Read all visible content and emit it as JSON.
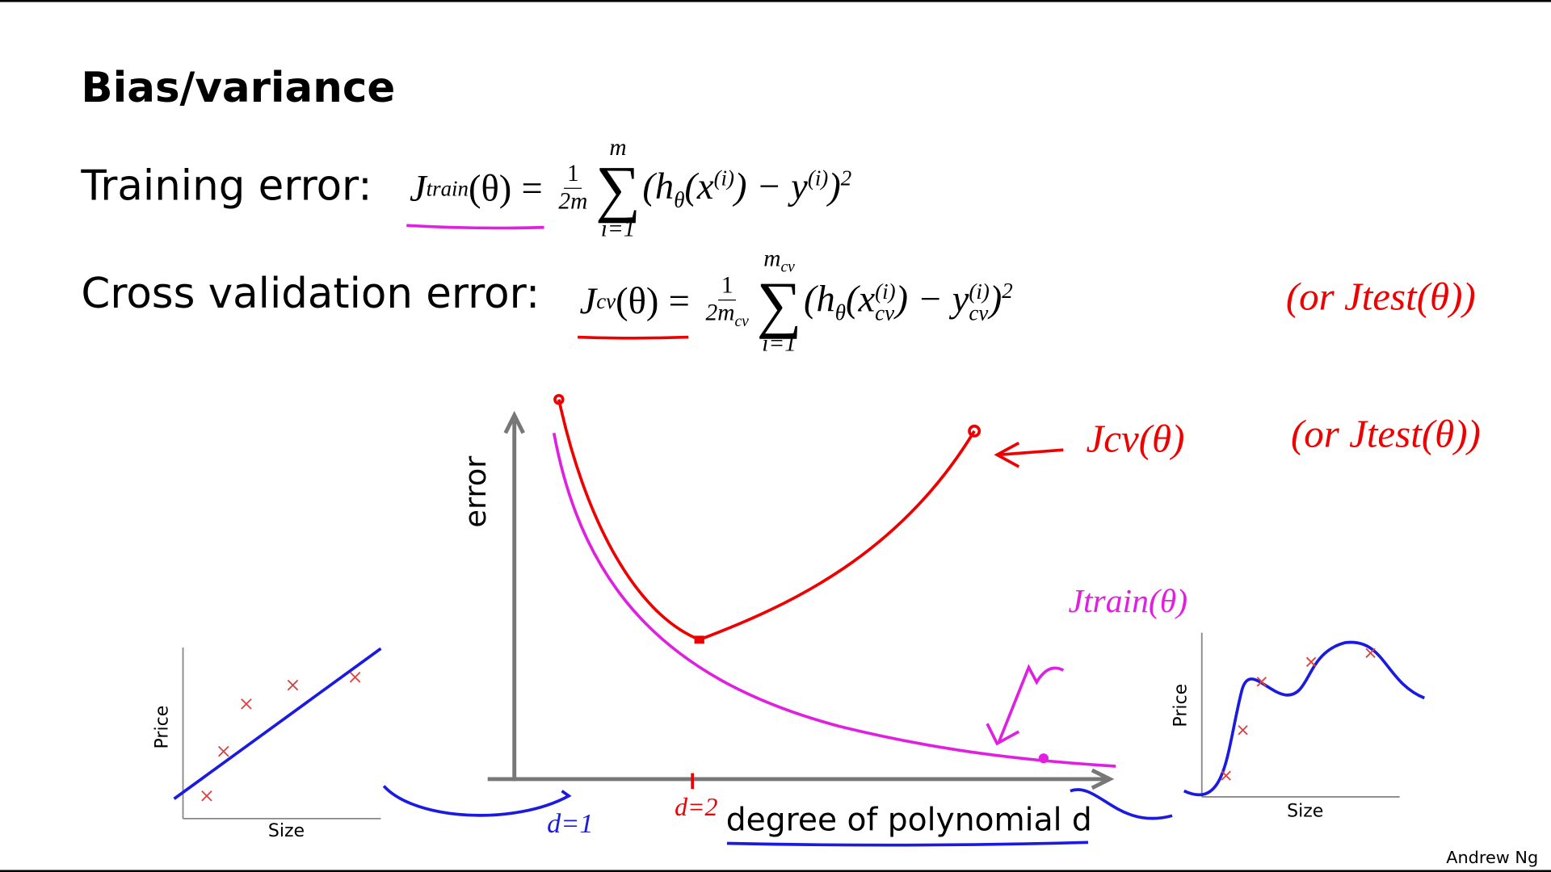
{
  "title": "Bias/variance",
  "training": {
    "label": "Training error:",
    "lhs_symbol": "J",
    "lhs_subscript": "train",
    "lhs_argument": "(θ)",
    "equals": "=",
    "frac_num": "1",
    "frac_den": "2m",
    "sum_top": "m",
    "sum_symbol": "∑",
    "sum_bottom": "i=1",
    "body": [
      "(h",
      "θ",
      "(x",
      "(i)",
      ") − y",
      "(i)",
      ")",
      "2"
    ]
  },
  "cv": {
    "label": "Cross validation error:",
    "lhs_symbol": "J",
    "lhs_subscript": "cv",
    "lhs_argument": "(θ)",
    "equals": "=",
    "frac_num": "1",
    "frac_den": "2m",
    "frac_den_subscript": "cv",
    "sum_top": "m",
    "sum_top_subscript": "cv",
    "sum_symbol": "∑",
    "sum_bottom": "i=1",
    "body": [
      "(h",
      "θ",
      "(x",
      "(i)",
      "cv",
      ") − y",
      "(i)",
      "cv",
      ")",
      "2"
    ]
  },
  "annotations": {
    "or_jtest_formula": "(or Jtest(θ))",
    "jcv": "Jcv(θ)",
    "or_jtest_curve": "(or Jtest(θ))",
    "jtrain": "Jtrain(θ)",
    "d1": "d=1",
    "d2": "d=2"
  },
  "main_plot": {
    "y_label": "error",
    "x_label": "degree of polynomial d"
  },
  "left_plot": {
    "y_label": "Price",
    "x_label": "Size"
  },
  "right_plot": {
    "y_label": "Price",
    "x_label": "Size"
  },
  "footer": "Andrew Ng"
}
